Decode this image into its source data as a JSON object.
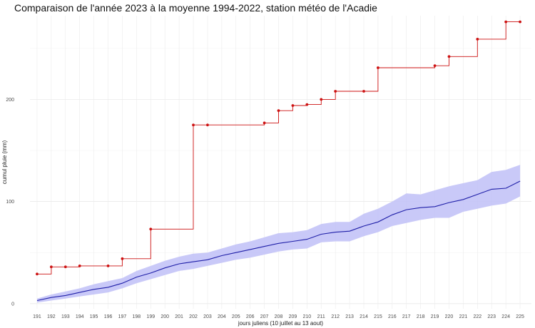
{
  "chart_data": {
    "type": "line",
    "title": "Comparaison de l'année 2023 à la moyenne 1994-2022, station météo de l'Acadie",
    "xlabel": "jours juliens (10 juillet au 13 aout)",
    "ylabel": "cumul pluie (mm)",
    "xlim": [
      190.5,
      225.8
    ],
    "ylim": [
      -5,
      282
    ],
    "yticks": [
      0,
      100,
      200
    ],
    "x": [
      191,
      192,
      193,
      194,
      195,
      196,
      197,
      198,
      199,
      200,
      201,
      202,
      203,
      204,
      205,
      206,
      207,
      208,
      209,
      210,
      211,
      212,
      213,
      214,
      215,
      216,
      217,
      218,
      219,
      220,
      221,
      222,
      223,
      224,
      225
    ],
    "xtick_labels": [
      "191",
      "192",
      "193",
      "194",
      "195",
      "196",
      "197",
      "198",
      "199",
      "200",
      "201",
      "202",
      "203",
      "204",
      "205",
      "206",
      "207",
      "208",
      "209",
      "210",
      "211",
      "212",
      "213",
      "214",
      "215",
      "216",
      "217",
      "218",
      "219",
      "220",
      "221",
      "222",
      "223",
      "224",
      "225"
    ],
    "grid": true,
    "legend": "none",
    "series": [
      {
        "style": "line-with-points",
        "color": "#cc1111",
        "step": "hv",
        "values": [
          29,
          36,
          36,
          37,
          37,
          37,
          44,
          44,
          73,
          73,
          73,
          175,
          175,
          175,
          175,
          175,
          177,
          189,
          194,
          195,
          200,
          208,
          208,
          208,
          231,
          231,
          231,
          231,
          233,
          242,
          242,
          259,
          259,
          276,
          276
        ],
        "points_x": [
          191,
          192,
          193,
          194,
          196,
          197,
          199,
          202,
          203,
          207,
          208,
          209,
          210,
          211,
          212,
          214,
          215,
          219,
          220,
          222,
          224,
          225
        ],
        "points_y": [
          29,
          36,
          36,
          37,
          37,
          44,
          73,
          175,
          175,
          177,
          189,
          194,
          195,
          200,
          208,
          208,
          231,
          233,
          242,
          259,
          276,
          276
        ]
      },
      {
        "style": "line-with-ribbon",
        "color": "#1f1fa8",
        "ribbon_color": "#c3c3f7",
        "values": [
          3,
          6,
          8,
          11,
          14,
          16,
          20,
          26,
          30,
          35,
          39,
          41,
          43,
          47,
          50,
          53,
          56,
          59,
          61,
          63,
          68,
          70,
          71,
          76,
          80,
          87,
          92,
          94,
          95,
          99,
          102,
          107,
          112,
          113,
          120
        ],
        "lower": [
          1,
          3,
          5,
          7,
          9,
          11,
          15,
          20,
          24,
          28,
          32,
          34,
          37,
          40,
          43,
          45,
          48,
          51,
          53,
          54,
          60,
          61,
          61,
          66,
          70,
          76,
          79,
          82,
          84,
          84,
          90,
          93,
          96,
          98,
          105
        ],
        "upper": [
          5,
          9,
          12,
          15,
          19,
          22,
          25,
          32,
          37,
          42,
          46,
          49,
          50,
          54,
          58,
          61,
          65,
          69,
          70,
          72,
          78,
          80,
          80,
          88,
          93,
          100,
          108,
          107,
          111,
          115,
          118,
          121,
          129,
          131,
          136
        ]
      }
    ]
  }
}
